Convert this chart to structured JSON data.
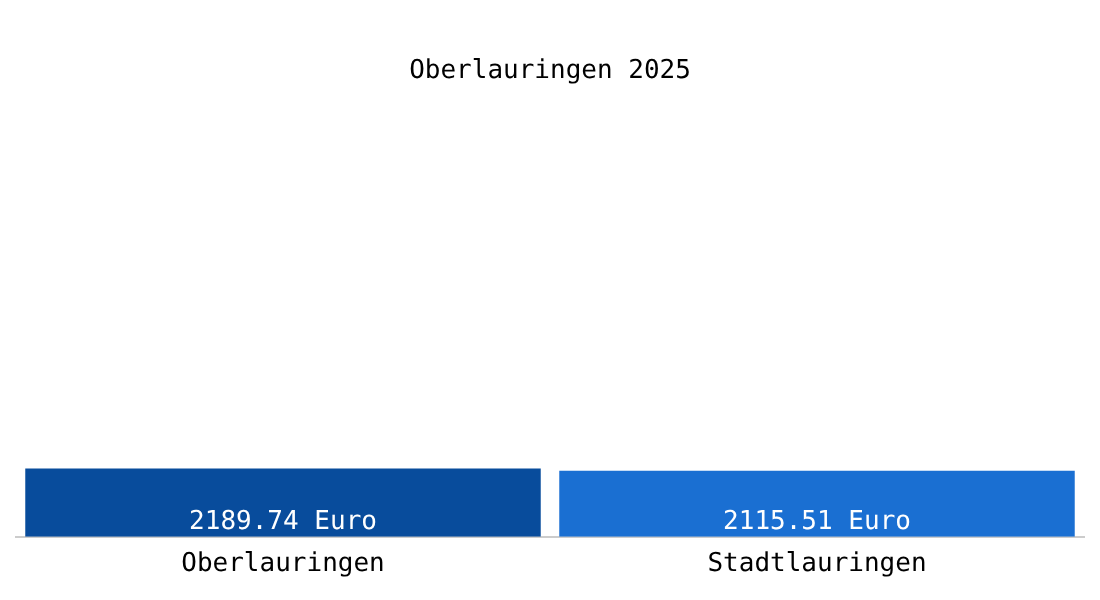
{
  "chart_data": {
    "type": "bar",
    "title": "Oberlauringen 2025",
    "categories": [
      "Oberlauringen",
      "Stadtlauringen"
    ],
    "values": [
      2189.74,
      2115.51
    ],
    "colors": [
      "#084c9c",
      "#1a6fd2"
    ],
    "value_labels": [
      "2189.74 Euro",
      "2115.51 Euro"
    ],
    "grid": false,
    "legend": false
  }
}
